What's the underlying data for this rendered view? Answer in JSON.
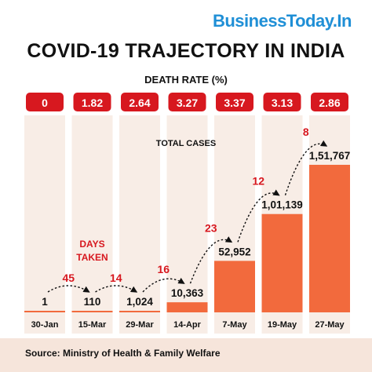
{
  "brand": "BusinessToday.In",
  "title": "COVID-19 TRAJECTORY IN INDIA",
  "death_rate_label": "DEATH RATE (%)",
  "source": "Source: Ministry of Health & Family Welfare",
  "colors": {
    "bar": "#f26a3d",
    "badge": "#d7181f",
    "days": "#d7181f",
    "column": "#f8ede6",
    "brand": "#1f8fd6",
    "source_bg": "#f6e5db"
  },
  "chart_data": {
    "type": "bar",
    "title": "COVID-19 TRAJECTORY IN INDIA",
    "categories": [
      "30-Jan",
      "15-Mar",
      "29-Mar",
      "14-Apr",
      "7-May",
      "19-May",
      "27-May"
    ],
    "series": [
      {
        "name": "TOTAL CASES",
        "values": [
          1,
          110,
          1024,
          10363,
          52952,
          101139,
          151767
        ],
        "labels": [
          "1",
          "110",
          "1,024",
          "10,363",
          "52,952",
          "1,01,139",
          "1,51,767"
        ]
      }
    ],
    "series_label": "TOTAL CASES",
    "death_rate": [
      "0",
      "1.82",
      "2.64",
      "3.27",
      "3.37",
      "3.13",
      "2.86"
    ],
    "days_taken_label": [
      "DAYS",
      "TAKEN"
    ],
    "days_taken": [
      "45",
      "14",
      "16",
      "23",
      "12",
      "8"
    ],
    "ylim": [
      0,
      151767
    ]
  }
}
